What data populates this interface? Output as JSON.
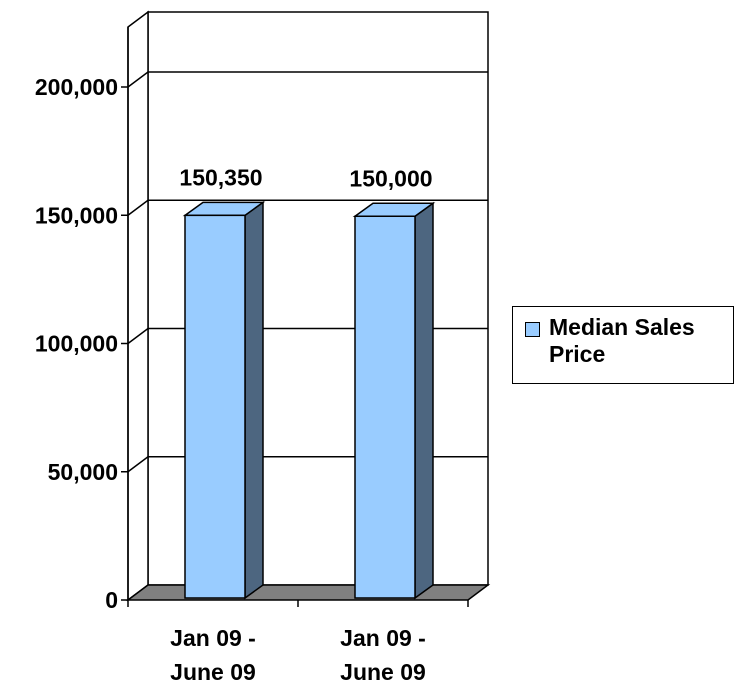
{
  "chart_data": {
    "type": "bar",
    "categories": [
      "Jan 09 -\nJune 09",
      "Jan 09 -\nJune 09"
    ],
    "series": [
      {
        "name": "Median Sales Price",
        "values": [
          150350,
          150000
        ],
        "color": "#99ccff",
        "side_color": "#4d6680"
      }
    ],
    "data_labels": [
      "150,350",
      "150,000"
    ],
    "ylim": [
      0,
      200000
    ],
    "yticks": [
      0,
      50000,
      100000,
      150000,
      200000
    ],
    "ytick_labels": [
      "0",
      "50,000",
      "100,000",
      "150,000",
      "200,000"
    ],
    "grid": true,
    "legend": "right",
    "three_d": true
  },
  "legend": {
    "label": "Median Sales Price"
  }
}
